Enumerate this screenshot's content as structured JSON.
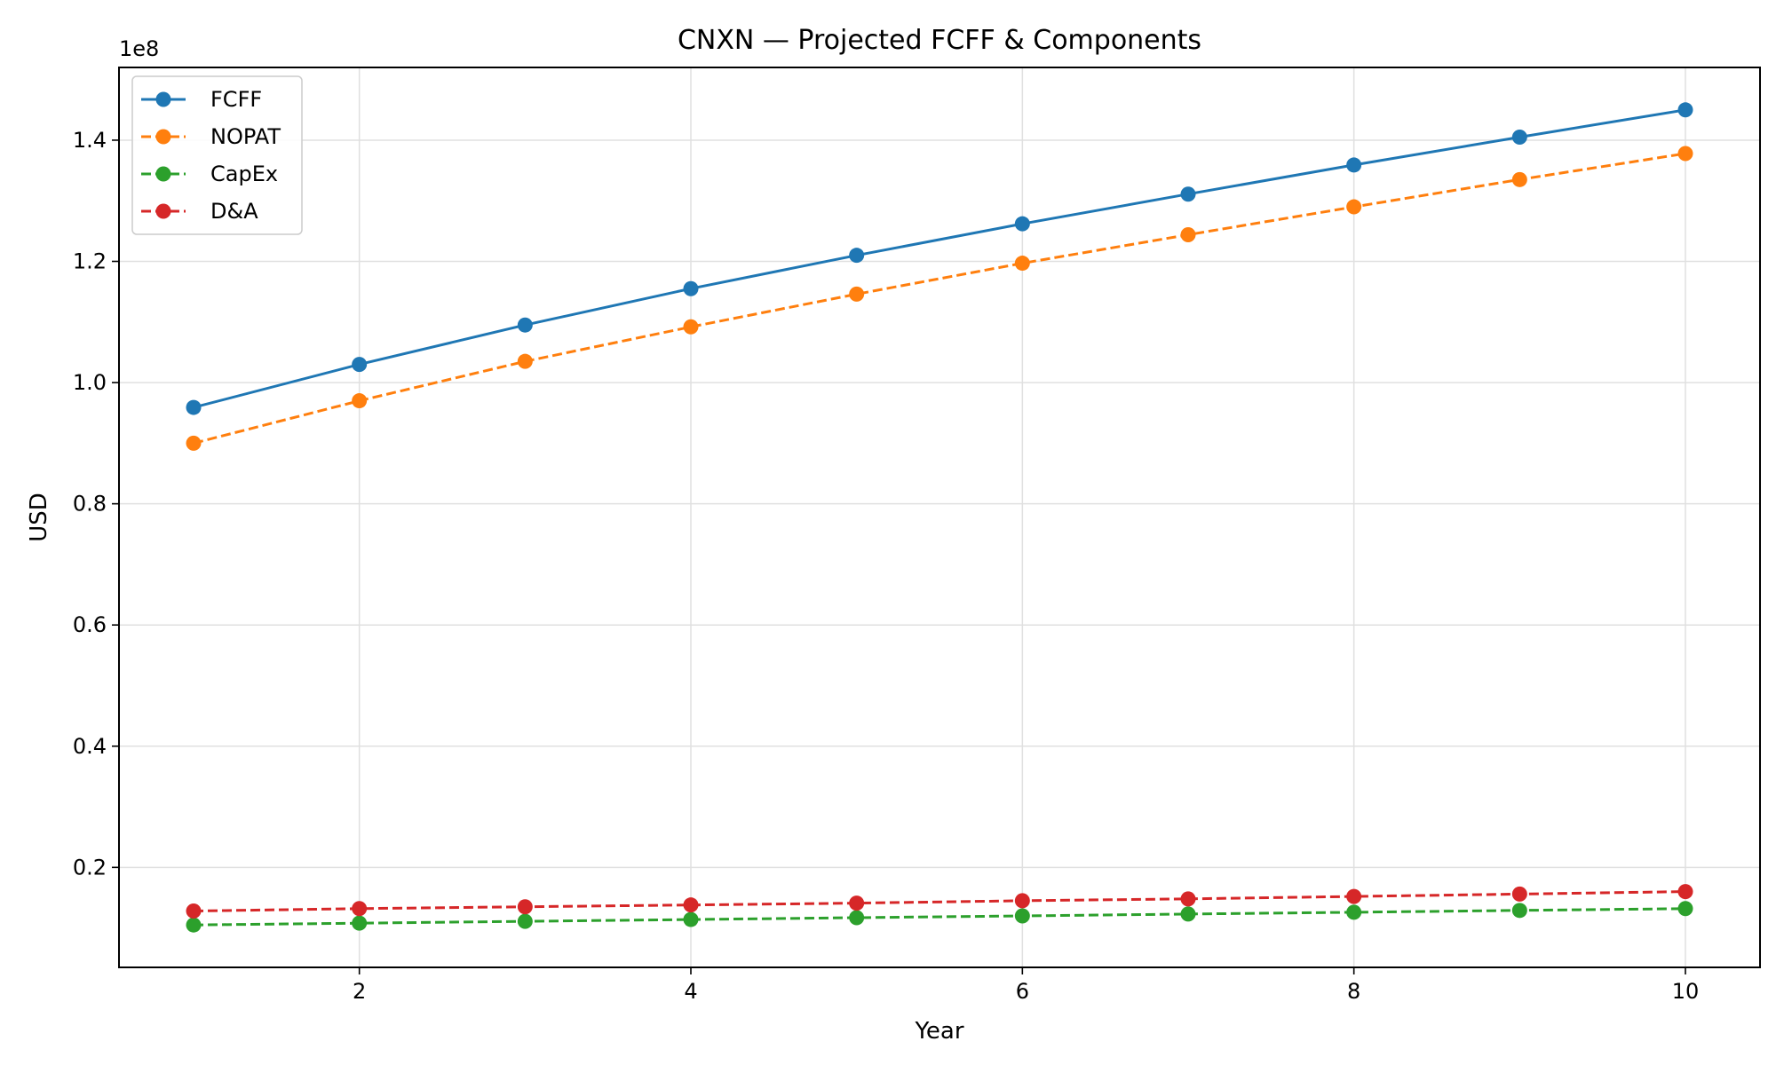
{
  "chart_data": {
    "type": "line",
    "title": "CNXN — Projected FCFF & Components",
    "xlabel": "Year",
    "ylabel": "USD",
    "y_offset_label": "1e8",
    "x": [
      1,
      2,
      3,
      4,
      5,
      6,
      7,
      8,
      9,
      10
    ],
    "xlim": [
      0.55,
      10.45
    ],
    "ylim": [
      0.035,
      1.52
    ],
    "y_scale": 100000000,
    "x_ticks": [
      2,
      4,
      6,
      8,
      10
    ],
    "x_tick_labels": [
      "2",
      "4",
      "6",
      "8",
      "10"
    ],
    "y_ticks": [
      0.2,
      0.4,
      0.6,
      0.8,
      1.0,
      1.2,
      1.4
    ],
    "y_tick_labels": [
      "0.2",
      "0.4",
      "0.6",
      "0.8",
      "1.0",
      "1.2",
      "1.4"
    ],
    "grid": true,
    "legend_position": "top-left",
    "series": [
      {
        "name": "FCFF",
        "color": "#1f77b4",
        "style": "solid",
        "marker": "circle",
        "values": [
          0.959,
          1.03,
          1.095,
          1.155,
          1.21,
          1.262,
          1.311,
          1.359,
          1.405,
          1.45
        ]
      },
      {
        "name": "NOPAT",
        "color": "#ff7f0e",
        "style": "dashed",
        "marker": "circle",
        "values": [
          0.9,
          0.97,
          1.035,
          1.092,
          1.146,
          1.197,
          1.244,
          1.29,
          1.335,
          1.378
        ]
      },
      {
        "name": "CapEx",
        "color": "#2ca02c",
        "style": "dashed",
        "marker": "circle",
        "values": [
          0.105,
          0.108,
          0.111,
          0.114,
          0.117,
          0.12,
          0.123,
          0.126,
          0.129,
          0.132
        ]
      },
      {
        "name": "D&A",
        "color": "#d62728",
        "style": "dashed",
        "marker": "circle",
        "values": [
          0.128,
          0.132,
          0.135,
          0.138,
          0.141,
          0.145,
          0.148,
          0.152,
          0.156,
          0.16
        ]
      }
    ]
  }
}
